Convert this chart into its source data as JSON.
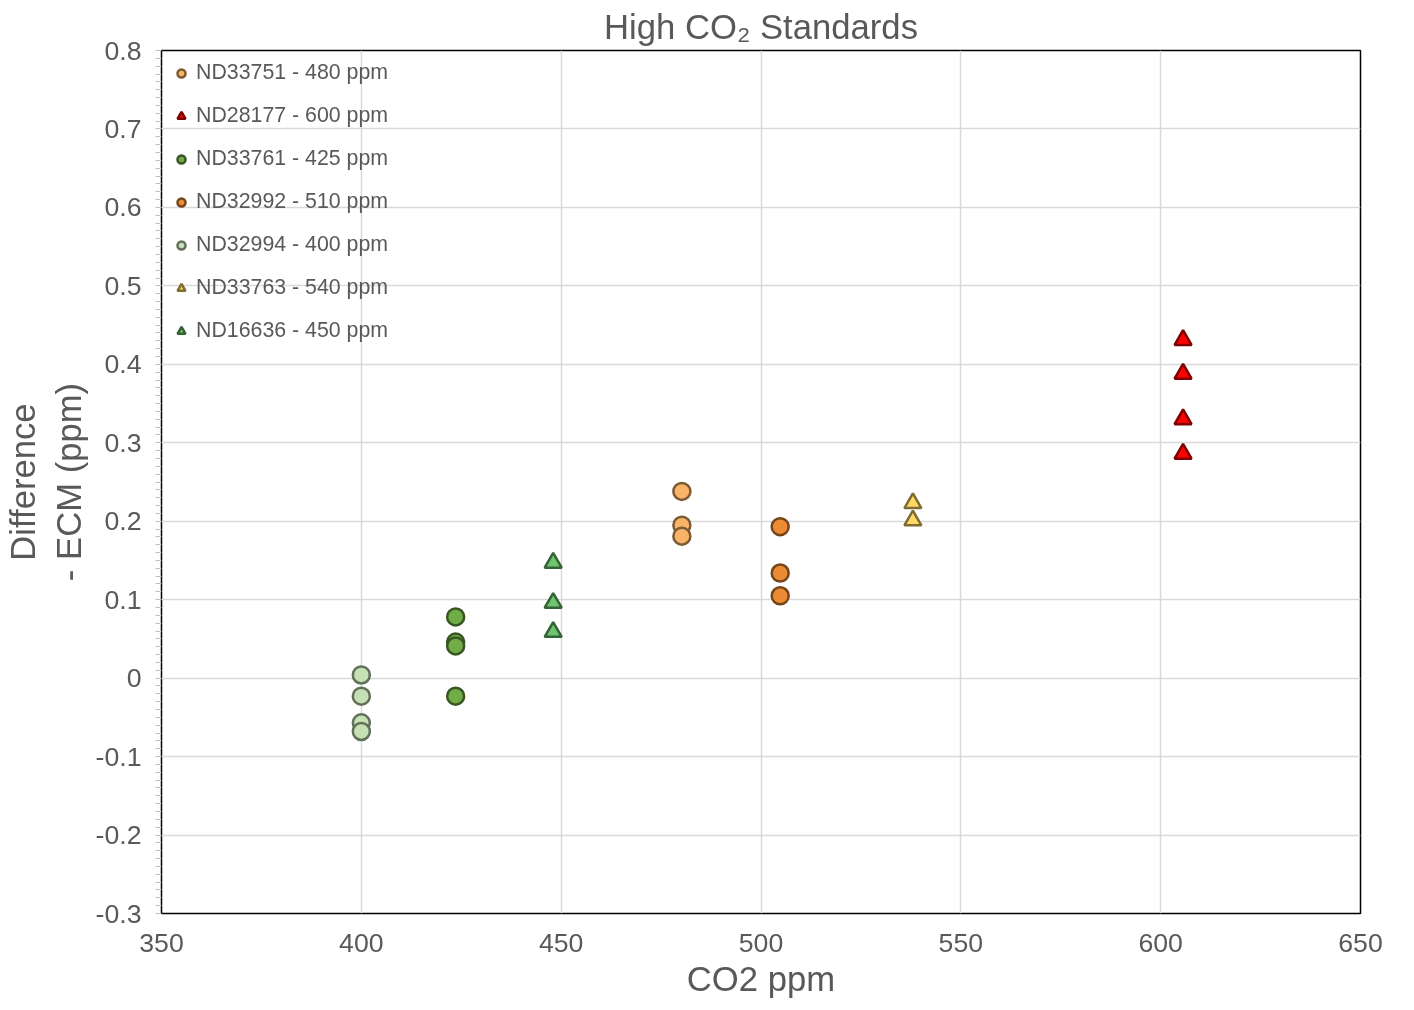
{
  "chart_data": {
    "type": "scatter",
    "title": "High CO₂ Standards",
    "xlabel": "CO2 ppm",
    "ylabel": "Difference\n- ECM (ppm)",
    "xlim": [
      350,
      650
    ],
    "xticks": [
      350,
      400,
      450,
      500,
      550,
      600,
      650
    ],
    "ylim": [
      -0.3,
      0.8
    ],
    "yticks": [
      {
        "value": -0.3,
        "label": "-0.3"
      },
      {
        "value": -0.2,
        "label": "-0.2"
      },
      {
        "value": -0.1,
        "label": "-0.1"
      },
      0,
      0.1,
      0.2,
      0.3,
      0.4,
      0.5,
      0.6,
      0.7,
      0.8
    ],
    "grid": true,
    "legend": "top left",
    "series": [
      {
        "name": "ND33751 - 480 ppm",
        "color": "#f9b567",
        "marker": "circle",
        "x": [
          480.2,
          480.2,
          480.2
        ],
        "values": [
          0.238,
          0.195,
          0.181
        ]
      },
      {
        "name": "ND28177 - 600 ppm",
        "color": "#ff0000",
        "marker": "triangle",
        "x": [
          605.6,
          605.6,
          605.6,
          605.6
        ],
        "values": [
          0.431,
          0.388,
          0.33,
          0.286
        ]
      },
      {
        "name": "ND33761 - 425 ppm",
        "color": "#70ad47",
        "marker": "circle",
        "x": [
          423.6,
          423.6,
          423.6,
          423.6
        ],
        "values": [
          0.078,
          0.046,
          0.041,
          -0.023
        ]
      },
      {
        "name": "ND32992 - 510 ppm",
        "color": "#ed8b34",
        "marker": "circle",
        "x": [
          504.8,
          504.8,
          504.8
        ],
        "values": [
          0.193,
          0.134,
          0.105
        ]
      },
      {
        "name": "ND32994 - 400 ppm",
        "color": "#c5e0b4",
        "marker": "circle",
        "x": [
          400,
          400,
          400,
          400
        ],
        "values": [
          0.004,
          -0.023,
          -0.057,
          -0.068
        ]
      },
      {
        "name": "ND33763 - 540 ppm",
        "color": "#ffd966",
        "marker": "triangle",
        "x": [
          538,
          538
        ],
        "values": [
          0.223,
          0.201
        ]
      },
      {
        "name": "ND16636 - 450 ppm",
        "color": "#6dc56f",
        "marker": "triangle",
        "x": [
          448,
          448,
          448
        ],
        "values": [
          0.147,
          0.096,
          0.059
        ]
      }
    ]
  }
}
